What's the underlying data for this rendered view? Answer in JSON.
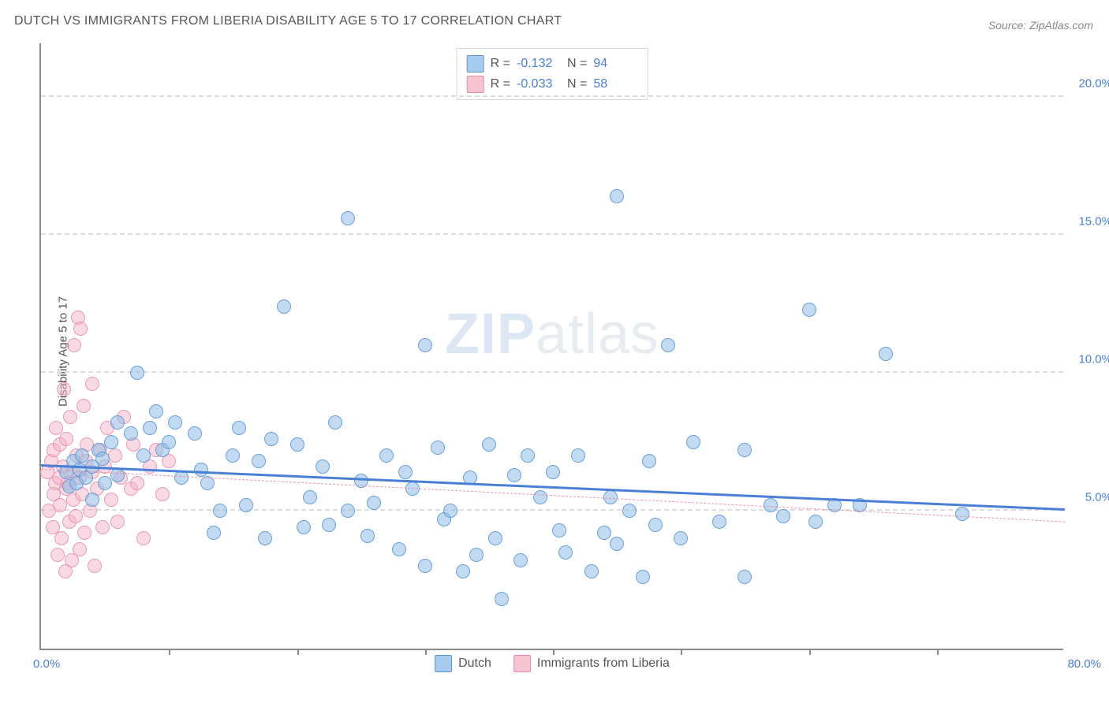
{
  "title": "DUTCH VS IMMIGRANTS FROM LIBERIA DISABILITY AGE 5 TO 17 CORRELATION CHART",
  "source": "Source: ZipAtlas.com",
  "ylabel": "Disability Age 5 to 17",
  "watermark_zip": "ZIP",
  "watermark_atlas": "atlas",
  "chart": {
    "type": "scatter-correlation",
    "background_color": "#ffffff",
    "grid_color": "#dddddd",
    "axis_color": "#888888",
    "label_color": "#4a7fd6",
    "title_color": "#555555",
    "title_fontsize": 16,
    "label_fontsize": 15,
    "point_radius": 9,
    "xlim": [
      0,
      80
    ],
    "ylim": [
      0,
      22
    ],
    "x_origin_label": "0.0%",
    "x_end_label": "80.0%",
    "x_ticks_at": [
      10,
      20,
      30,
      40,
      50,
      60,
      70
    ],
    "y_gridlines": [
      {
        "value": 5,
        "label": "5.0%"
      },
      {
        "value": 10,
        "label": "10.0%"
      },
      {
        "value": 15,
        "label": "15.0%"
      },
      {
        "value": 20,
        "label": "20.0%"
      }
    ],
    "series": {
      "dutch": {
        "label": "Dutch",
        "color_fill": "rgba(144,190,232,0.55)",
        "color_stroke": "rgba(90,150,210,0.85)",
        "R": "-0.132",
        "N": "94",
        "points": [
          [
            2.0,
            6.4
          ],
          [
            2.2,
            5.9
          ],
          [
            2.5,
            6.8
          ],
          [
            2.8,
            6.0
          ],
          [
            3.0,
            6.5
          ],
          [
            3.2,
            7.0
          ],
          [
            3.5,
            6.2
          ],
          [
            4.0,
            6.6
          ],
          [
            4.0,
            5.4
          ],
          [
            4.5,
            7.2
          ],
          [
            4.8,
            6.9
          ],
          [
            5.0,
            6.0
          ],
          [
            5.5,
            7.5
          ],
          [
            6.0,
            8.2
          ],
          [
            6.0,
            6.3
          ],
          [
            7.0,
            7.8
          ],
          [
            7.5,
            10.0
          ],
          [
            8.0,
            7.0
          ],
          [
            8.5,
            8.0
          ],
          [
            9.0,
            8.6
          ],
          [
            9.5,
            7.2
          ],
          [
            10.0,
            7.5
          ],
          [
            10.5,
            8.2
          ],
          [
            11.0,
            6.2
          ],
          [
            12.0,
            7.8
          ],
          [
            12.5,
            6.5
          ],
          [
            13.0,
            6.0
          ],
          [
            13.5,
            4.2
          ],
          [
            14.0,
            5.0
          ],
          [
            15.0,
            7.0
          ],
          [
            15.5,
            8.0
          ],
          [
            16.0,
            5.2
          ],
          [
            17.0,
            6.8
          ],
          [
            17.5,
            4.0
          ],
          [
            18.0,
            7.6
          ],
          [
            19.0,
            12.4
          ],
          [
            20.0,
            7.4
          ],
          [
            20.5,
            4.4
          ],
          [
            21.0,
            5.5
          ],
          [
            22.0,
            6.6
          ],
          [
            22.5,
            4.5
          ],
          [
            23.0,
            8.2
          ],
          [
            24.0,
            5.0
          ],
          [
            24.0,
            15.6
          ],
          [
            25.0,
            6.1
          ],
          [
            25.5,
            4.1
          ],
          [
            26.0,
            5.3
          ],
          [
            27.0,
            7.0
          ],
          [
            28.0,
            3.6
          ],
          [
            28.5,
            6.4
          ],
          [
            29.0,
            5.8
          ],
          [
            30.0,
            3.0
          ],
          [
            30.0,
            11.0
          ],
          [
            31.0,
            7.3
          ],
          [
            31.5,
            4.7
          ],
          [
            32.0,
            5.0
          ],
          [
            33.0,
            2.8
          ],
          [
            33.5,
            6.2
          ],
          [
            34.0,
            3.4
          ],
          [
            35.0,
            7.4
          ],
          [
            35.5,
            4.0
          ],
          [
            36.0,
            1.8
          ],
          [
            37.0,
            6.3
          ],
          [
            37.5,
            3.2
          ],
          [
            38.0,
            7.0
          ],
          [
            39.0,
            5.5
          ],
          [
            40.0,
            6.4
          ],
          [
            40.5,
            4.3
          ],
          [
            41.0,
            3.5
          ],
          [
            42.0,
            7.0
          ],
          [
            43.0,
            2.8
          ],
          [
            44.0,
            4.2
          ],
          [
            44.5,
            5.5
          ],
          [
            45.0,
            16.4
          ],
          [
            45.0,
            3.8
          ],
          [
            46.0,
            5.0
          ],
          [
            47.0,
            2.6
          ],
          [
            47.5,
            6.8
          ],
          [
            48.0,
            4.5
          ],
          [
            49.0,
            11.0
          ],
          [
            50.0,
            4.0
          ],
          [
            51.0,
            7.5
          ],
          [
            53.0,
            4.6
          ],
          [
            55.0,
            2.6
          ],
          [
            55.0,
            7.2
          ],
          [
            57.0,
            5.2
          ],
          [
            58.0,
            4.8
          ],
          [
            60.0,
            12.3
          ],
          [
            60.5,
            4.6
          ],
          [
            62.0,
            5.2
          ],
          [
            64.0,
            5.2
          ],
          [
            66.0,
            10.7
          ],
          [
            72.0,
            4.9
          ]
        ],
        "trend": {
          "y_at_x0": 6.6,
          "y_at_xmax": 5.0,
          "style": "solid",
          "width": 3
        }
      },
      "liberia": {
        "label": "Immigrants from Liberia",
        "color_fill": "rgba(244,180,200,0.5)",
        "color_stroke": "rgba(230,140,165,0.8)",
        "R": "-0.033",
        "N": "58",
        "points": [
          [
            0.5,
            6.4
          ],
          [
            0.6,
            5.0
          ],
          [
            0.8,
            6.8
          ],
          [
            0.9,
            4.4
          ],
          [
            1.0,
            5.6
          ],
          [
            1.0,
            7.2
          ],
          [
            1.1,
            6.0
          ],
          [
            1.2,
            8.0
          ],
          [
            1.3,
            3.4
          ],
          [
            1.4,
            6.2
          ],
          [
            1.5,
            5.2
          ],
          [
            1.5,
            7.4
          ],
          [
            1.6,
            4.0
          ],
          [
            1.7,
            6.6
          ],
          [
            1.8,
            9.4
          ],
          [
            1.9,
            2.8
          ],
          [
            2.0,
            5.8
          ],
          [
            2.0,
            7.6
          ],
          [
            2.1,
            6.0
          ],
          [
            2.2,
            4.6
          ],
          [
            2.3,
            8.4
          ],
          [
            2.4,
            3.2
          ],
          [
            2.5,
            6.4
          ],
          [
            2.5,
            5.4
          ],
          [
            2.6,
            11.0
          ],
          [
            2.7,
            4.8
          ],
          [
            2.8,
            7.0
          ],
          [
            2.9,
            12.0
          ],
          [
            3.0,
            6.2
          ],
          [
            3.0,
            3.6
          ],
          [
            3.1,
            11.6
          ],
          [
            3.2,
            5.6
          ],
          [
            3.3,
            8.8
          ],
          [
            3.4,
            4.2
          ],
          [
            3.5,
            6.8
          ],
          [
            3.6,
            7.4
          ],
          [
            3.8,
            5.0
          ],
          [
            4.0,
            9.6
          ],
          [
            4.0,
            6.4
          ],
          [
            4.2,
            3.0
          ],
          [
            4.4,
            5.8
          ],
          [
            4.6,
            7.2
          ],
          [
            4.8,
            4.4
          ],
          [
            5.0,
            6.6
          ],
          [
            5.2,
            8.0
          ],
          [
            5.5,
            5.4
          ],
          [
            5.8,
            7.0
          ],
          [
            6.0,
            4.6
          ],
          [
            6.2,
            6.2
          ],
          [
            6.5,
            8.4
          ],
          [
            7.0,
            5.8
          ],
          [
            7.2,
            7.4
          ],
          [
            7.5,
            6.0
          ],
          [
            8.0,
            4.0
          ],
          [
            8.5,
            6.6
          ],
          [
            9.0,
            7.2
          ],
          [
            9.5,
            5.6
          ],
          [
            10.0,
            6.8
          ]
        ],
        "trend": {
          "y_at_x0": 6.5,
          "y_at_xmax": 4.6,
          "style": "dashed",
          "width": 1.5
        }
      }
    },
    "stats_legend": {
      "r_label": "R =",
      "n_label": "N ="
    }
  }
}
